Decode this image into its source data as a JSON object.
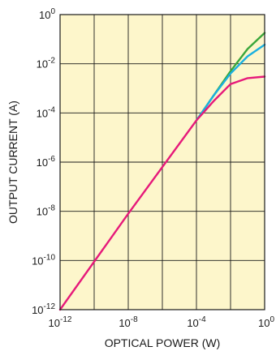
{
  "chart_data": {
    "type": "line",
    "title": "",
    "xlabel": "OPTICAL POWER (W)",
    "ylabel": "OUTPUT CURRENT (A)",
    "xscale": "log",
    "yscale": "log",
    "xlim": [
      1e-12,
      1
    ],
    "ylim": [
      1e-12,
      1
    ],
    "grid": true,
    "x_tick_labels": [
      {
        "base": "10",
        "exp": "-12"
      },
      {
        "base": "10",
        "exp": "-8"
      },
      {
        "base": "10",
        "exp": "-4"
      },
      {
        "base": "10",
        "exp": "0"
      }
    ],
    "y_tick_labels": [
      {
        "base": "10",
        "exp": "0"
      },
      {
        "base": "10",
        "exp": "-2"
      },
      {
        "base": "10",
        "exp": "-4"
      },
      {
        "base": "10",
        "exp": "-6"
      },
      {
        "base": "10",
        "exp": "-8"
      },
      {
        "base": "10",
        "exp": "-10"
      },
      {
        "base": "10",
        "exp": "-12"
      }
    ],
    "series": [
      {
        "color": "#3aa63a",
        "x": [
          0.0001,
          0.001,
          0.01,
          0.1,
          1
        ],
        "y": [
          5e-05,
          0.0005,
          0.005,
          0.04,
          0.18
        ]
      },
      {
        "color": "#1ab0e0",
        "x": [
          0.0001,
          0.001,
          0.01,
          0.1,
          1
        ],
        "y": [
          5e-05,
          0.0005,
          0.004,
          0.02,
          0.06
        ]
      },
      {
        "color": "#e6197a",
        "x": [
          1e-12,
          1e-08,
          0.0001,
          0.001,
          0.01,
          0.1,
          1
        ],
        "y": [
          1e-12,
          8e-09,
          5e-05,
          0.0003,
          0.0015,
          0.0026,
          0.003
        ]
      }
    ]
  },
  "colors": {
    "plot_background": "#fdf6cb",
    "grid": "#1a1a1a",
    "text": "#1a1a1a"
  }
}
